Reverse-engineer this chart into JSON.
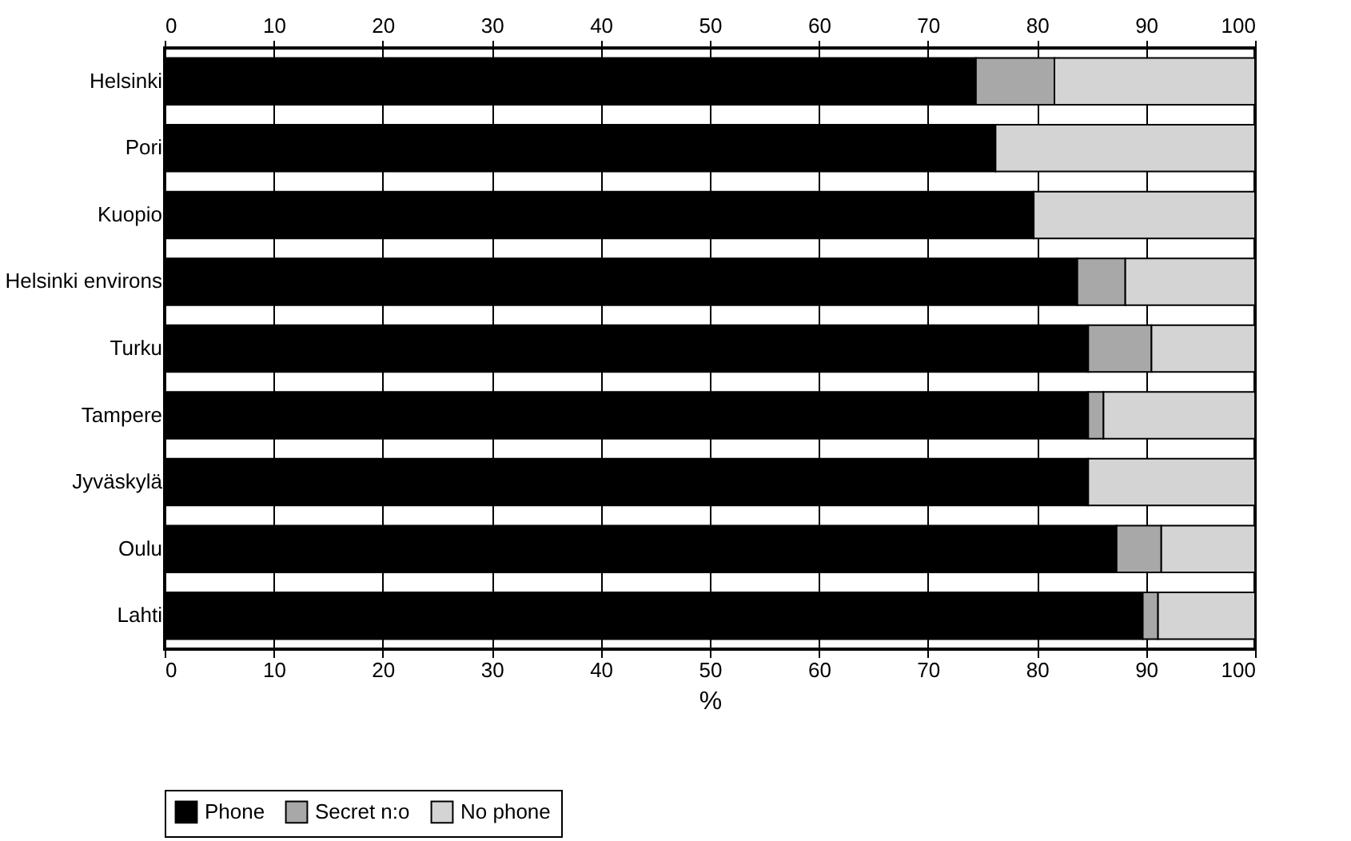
{
  "chart_data": {
    "type": "bar",
    "orientation": "horizontal",
    "stacked": true,
    "xlabel": "%",
    "categories": [
      "Helsinki",
      "Pori",
      "Kuopio",
      "Helsinki environs",
      "Turku",
      "Tampere",
      "Jyväskylä",
      "Oulu",
      "Lahti"
    ],
    "series": [
      {
        "name": "Phone",
        "color": "#000000",
        "values": [
          74.4,
          76.2,
          79.7,
          83.7,
          84.7,
          84.7,
          84.7,
          87.3,
          89.7
        ]
      },
      {
        "name": "Secret n:o",
        "color": "#a8a8a8",
        "values": [
          7.2,
          0,
          0,
          4.4,
          5.8,
          1.4,
          0,
          4.1,
          1.4
        ]
      },
      {
        "name": "No phone",
        "color": "#d4d4d4",
        "values": [
          18.4,
          23.8,
          20.3,
          11.9,
          9.5,
          13.9,
          15.3,
          8.6,
          8.9
        ]
      }
    ],
    "xlim": [
      0,
      100
    ],
    "xticks": [
      0,
      10,
      20,
      30,
      40,
      50,
      60,
      70,
      80,
      90,
      100
    ],
    "x2lim": [
      0,
      100
    ],
    "x2ticks": [
      0,
      10,
      20,
      30,
      40,
      50,
      60,
      70,
      80,
      90,
      100
    ],
    "grid": "x",
    "legend": "bottom"
  }
}
